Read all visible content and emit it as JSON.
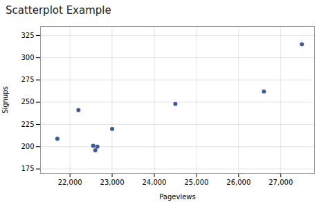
{
  "chart_data": {
    "type": "scatter",
    "title": "Scatterplot Example",
    "xlabel": "Pageviews",
    "ylabel": "Signups",
    "x": [
      21700,
      22200,
      22550,
      22600,
      22650,
      23000,
      24500,
      26600,
      27500
    ],
    "values": [
      209,
      241,
      201,
      196,
      200,
      220,
      248,
      262,
      315
    ],
    "color": "#3d5a99",
    "xlim": [
      21300,
      27800
    ],
    "ylim": [
      170,
      335
    ],
    "xticks": [
      {
        "value": 22000,
        "label": "22,000"
      },
      {
        "value": 23000,
        "label": "23,000"
      },
      {
        "value": 24000,
        "label": "24,000"
      },
      {
        "value": 25000,
        "label": "25,000"
      },
      {
        "value": 26000,
        "label": "26,000"
      },
      {
        "value": 27000,
        "label": "27,000"
      }
    ],
    "yticks": [
      175,
      200,
      225,
      250,
      275,
      300,
      325
    ],
    "grid": true
  }
}
